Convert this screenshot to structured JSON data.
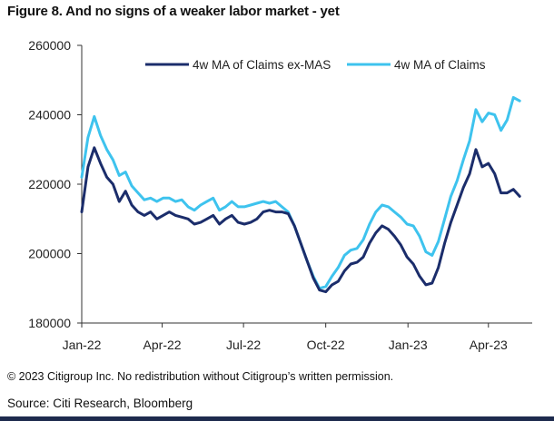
{
  "title": "Figure 8. And no signs of a weaker labor market - yet",
  "footnote": "© 2023 Citigroup Inc. No redistribution without Citigroup’s written permission.",
  "source": "Source: Citi Research, Bloomberg",
  "colors": {
    "ex_mas": "#1b2d6b",
    "claims": "#3ec3ee",
    "rule": "#1d2a4d"
  },
  "chart_data": {
    "type": "line",
    "title": "Figure 8. And no signs of a weaker labor market - yet",
    "xlabel": "",
    "ylabel": "",
    "x_ticks": [
      "Jan-22",
      "Apr-22",
      "Jul-22",
      "Oct-22",
      "Jan-23",
      "Apr-23"
    ],
    "y_ticks": [
      180000,
      200000,
      220000,
      240000,
      260000
    ],
    "ylim": [
      180000,
      260000
    ],
    "xlim": [
      "2022-01-01",
      "2023-05-20"
    ],
    "grid": false,
    "legend": "top-right",
    "series": [
      {
        "name": "4w MA of Claims ex-MAS",
        "points": [
          [
            "2022-01-01",
            212000
          ],
          [
            "2022-01-08",
            225000
          ],
          [
            "2022-01-15",
            230500
          ],
          [
            "2022-01-22",
            226000
          ],
          [
            "2022-01-29",
            222000
          ],
          [
            "2022-02-05",
            220000
          ],
          [
            "2022-02-12",
            215000
          ],
          [
            "2022-02-19",
            218000
          ],
          [
            "2022-02-26",
            214000
          ],
          [
            "2022-03-05",
            212000
          ],
          [
            "2022-03-12",
            211000
          ],
          [
            "2022-03-19",
            212000
          ],
          [
            "2022-03-26",
            210000
          ],
          [
            "2022-04-02",
            211000
          ],
          [
            "2022-04-09",
            212000
          ],
          [
            "2022-04-16",
            211000
          ],
          [
            "2022-04-23",
            210500
          ],
          [
            "2022-04-30",
            210000
          ],
          [
            "2022-05-07",
            208500
          ],
          [
            "2022-05-14",
            209000
          ],
          [
            "2022-05-21",
            210000
          ],
          [
            "2022-05-28",
            211000
          ],
          [
            "2022-06-04",
            208500
          ],
          [
            "2022-06-11",
            210000
          ],
          [
            "2022-06-18",
            211000
          ],
          [
            "2022-06-25",
            209000
          ],
          [
            "2022-07-02",
            208500
          ],
          [
            "2022-07-09",
            209000
          ],
          [
            "2022-07-16",
            210000
          ],
          [
            "2022-07-23",
            212000
          ],
          [
            "2022-07-30",
            212500
          ],
          [
            "2022-08-06",
            212000
          ],
          [
            "2022-08-13",
            212000
          ],
          [
            "2022-08-20",
            211500
          ],
          [
            "2022-08-27",
            208000
          ],
          [
            "2022-09-03",
            203000
          ],
          [
            "2022-09-10",
            198000
          ],
          [
            "2022-09-17",
            193000
          ],
          [
            "2022-09-24",
            189500
          ],
          [
            "2022-10-01",
            189000
          ],
          [
            "2022-10-08",
            191000
          ],
          [
            "2022-10-15",
            192000
          ],
          [
            "2022-10-22",
            195000
          ],
          [
            "2022-10-29",
            197000
          ],
          [
            "2022-11-05",
            197500
          ],
          [
            "2022-11-12",
            199000
          ],
          [
            "2022-11-19",
            203000
          ],
          [
            "2022-11-26",
            206000
          ],
          [
            "2022-12-03",
            208000
          ],
          [
            "2022-12-10",
            207000
          ],
          [
            "2022-12-17",
            205000
          ],
          [
            "2022-12-24",
            202500
          ],
          [
            "2022-12-31",
            199000
          ],
          [
            "2023-01-07",
            197000
          ],
          [
            "2023-01-14",
            193500
          ],
          [
            "2023-01-21",
            191000
          ],
          [
            "2023-01-28",
            191500
          ],
          [
            "2023-02-04",
            196000
          ],
          [
            "2023-02-11",
            203000
          ],
          [
            "2023-02-18",
            209000
          ],
          [
            "2023-02-25",
            214000
          ],
          [
            "2023-03-04",
            219000
          ],
          [
            "2023-03-11",
            223000
          ],
          [
            "2023-03-18",
            230000
          ],
          [
            "2023-03-25",
            225000
          ],
          [
            "2023-04-01",
            226000
          ],
          [
            "2023-04-08",
            223000
          ],
          [
            "2023-04-15",
            217500
          ],
          [
            "2023-04-22",
            217500
          ],
          [
            "2023-04-29",
            218500
          ],
          [
            "2023-05-06",
            216500
          ]
        ]
      },
      {
        "name": "4w MA of Claims",
        "points": [
          [
            "2022-01-01",
            222000
          ],
          [
            "2022-01-08",
            233500
          ],
          [
            "2022-01-15",
            239500
          ],
          [
            "2022-01-22",
            234000
          ],
          [
            "2022-01-29",
            230000
          ],
          [
            "2022-02-05",
            227000
          ],
          [
            "2022-02-12",
            222500
          ],
          [
            "2022-02-19",
            223500
          ],
          [
            "2022-02-26",
            219500
          ],
          [
            "2022-03-05",
            217500
          ],
          [
            "2022-03-12",
            215500
          ],
          [
            "2022-03-19",
            216000
          ],
          [
            "2022-03-26",
            215000
          ],
          [
            "2022-04-02",
            216000
          ],
          [
            "2022-04-09",
            216000
          ],
          [
            "2022-04-16",
            215000
          ],
          [
            "2022-04-23",
            215500
          ],
          [
            "2022-04-30",
            213500
          ],
          [
            "2022-05-07",
            212500
          ],
          [
            "2022-05-14",
            214000
          ],
          [
            "2022-05-21",
            215000
          ],
          [
            "2022-05-28",
            216000
          ],
          [
            "2022-06-04",
            212500
          ],
          [
            "2022-06-11",
            213500
          ],
          [
            "2022-06-18",
            215000
          ],
          [
            "2022-06-25",
            213500
          ],
          [
            "2022-07-02",
            213500
          ],
          [
            "2022-07-09",
            214000
          ],
          [
            "2022-07-16",
            214500
          ],
          [
            "2022-07-23",
            215000
          ],
          [
            "2022-07-30",
            214500
          ],
          [
            "2022-08-06",
            215000
          ],
          [
            "2022-08-13",
            213500
          ],
          [
            "2022-08-20",
            212000
          ],
          [
            "2022-08-27",
            208000
          ],
          [
            "2022-09-03",
            203000
          ],
          [
            "2022-09-10",
            198000
          ],
          [
            "2022-09-17",
            193500
          ],
          [
            "2022-09-24",
            190000
          ],
          [
            "2022-10-01",
            190500
          ],
          [
            "2022-10-08",
            193500
          ],
          [
            "2022-10-15",
            196000
          ],
          [
            "2022-10-22",
            199500
          ],
          [
            "2022-10-29",
            201000
          ],
          [
            "2022-11-05",
            201500
          ],
          [
            "2022-11-12",
            204000
          ],
          [
            "2022-11-19",
            208500
          ],
          [
            "2022-11-26",
            212000
          ],
          [
            "2022-12-03",
            214000
          ],
          [
            "2022-12-10",
            213500
          ],
          [
            "2022-12-17",
            212000
          ],
          [
            "2022-12-24",
            210500
          ],
          [
            "2022-12-31",
            208500
          ],
          [
            "2023-01-07",
            208000
          ],
          [
            "2023-01-14",
            205000
          ],
          [
            "2023-01-21",
            200500
          ],
          [
            "2023-01-28",
            199500
          ],
          [
            "2023-02-04",
            203500
          ],
          [
            "2023-02-11",
            210000
          ],
          [
            "2023-02-18",
            216500
          ],
          [
            "2023-02-25",
            221000
          ],
          [
            "2023-03-04",
            227000
          ],
          [
            "2023-03-11",
            232500
          ],
          [
            "2023-03-18",
            241500
          ],
          [
            "2023-03-25",
            238000
          ],
          [
            "2023-04-01",
            240500
          ],
          [
            "2023-04-08",
            240000
          ],
          [
            "2023-04-15",
            235500
          ],
          [
            "2023-04-22",
            238500
          ],
          [
            "2023-04-29",
            245000
          ],
          [
            "2023-05-06",
            244000
          ]
        ]
      }
    ]
  }
}
